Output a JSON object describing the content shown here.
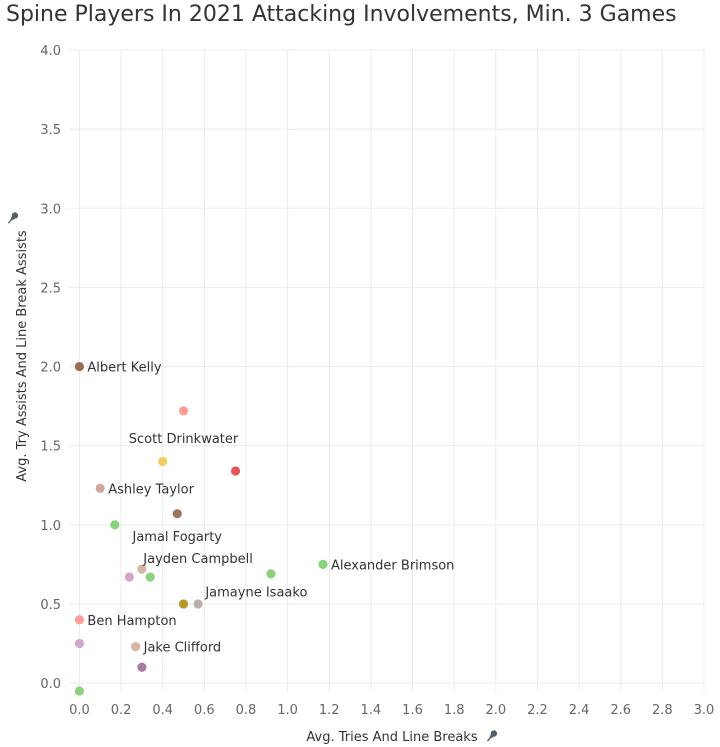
{
  "chart_data": {
    "type": "scatter",
    "title": "Spine Players In 2021 Attacking Involvements, Min. 3 Games",
    "xlabel": "Avg. Tries And Line Breaks",
    "ylabel": "Avg. Try Assists And Line Break Assists",
    "axis_pin_icon": "pin-icon",
    "xlim": [
      -0.05,
      3.0
    ],
    "ylim": [
      -0.05,
      4.0
    ],
    "xticks": [
      0.0,
      0.2,
      0.4,
      0.6,
      0.8,
      1.0,
      1.2,
      1.4,
      1.6,
      1.8,
      2.0,
      2.2,
      2.4,
      2.6,
      2.8,
      3.0
    ],
    "xtick_labels": [
      "0.0",
      "0.2",
      "0.4",
      "0.6",
      "0.8",
      "1.0",
      "1.2",
      "1.4",
      "1.6",
      "1.8",
      "2.0",
      "2.2",
      "2.4",
      "2.6",
      "2.8",
      "3.0"
    ],
    "yticks": [
      0.0,
      0.5,
      1.0,
      1.5,
      2.0,
      2.5,
      3.0,
      3.5,
      4.0
    ],
    "ytick_labels": [
      "0.0",
      "0.5",
      "1.0",
      "1.5",
      "2.0",
      "2.5",
      "3.0",
      "3.5",
      "4.0"
    ],
    "grid": true,
    "points": [
      {
        "x": 0.0,
        "y": 2.0,
        "color": "#9c6b55",
        "label": "Albert Kelly"
      },
      {
        "x": 0.5,
        "y": 1.72,
        "color": "#ff9d9a",
        "label": ""
      },
      {
        "x": 0.4,
        "y": 1.4,
        "color": "#f1ce63",
        "label": ""
      },
      {
        "x": 0.75,
        "y": 1.34,
        "color": "#e15759",
        "label": ""
      },
      {
        "x": 0.1,
        "y": 1.23,
        "color": "#d4a6a0",
        "label": "Ashley Taylor"
      },
      {
        "x": 0.47,
        "y": 1.07,
        "color": "#9d7660",
        "label": ""
      },
      {
        "x": 0.17,
        "y": 1.0,
        "color": "#8cd17d",
        "label": ""
      },
      {
        "x": 0.3,
        "y": 0.72,
        "color": "#d7b5a6",
        "label": ""
      },
      {
        "x": 0.34,
        "y": 0.67,
        "color": "#8cd17d",
        "label": ""
      },
      {
        "x": 0.24,
        "y": 0.67,
        "color": "#d4a6c8",
        "label": ""
      },
      {
        "x": 0.92,
        "y": 0.69,
        "color": "#8cd17d",
        "label": ""
      },
      {
        "x": 1.17,
        "y": 0.75,
        "color": "#8cd17d",
        "label": "Alexander Brimson"
      },
      {
        "x": 0.5,
        "y": 0.5,
        "color": "#b6992d",
        "label": ""
      },
      {
        "x": 0.57,
        "y": 0.5,
        "color": "#bab0ac",
        "label": ""
      },
      {
        "x": 0.0,
        "y": 0.4,
        "color": "#ff9d9a",
        "label": "Ben Hampton"
      },
      {
        "x": 0.0,
        "y": 0.25,
        "color": "#d4a6c8",
        "label": ""
      },
      {
        "x": 0.27,
        "y": 0.23,
        "color": "#d7b5a6",
        "label": "Jake Clifford"
      },
      {
        "x": 0.3,
        "y": 0.1,
        "color": "#a87c9f",
        "label": ""
      },
      {
        "x": 0.0,
        "y": -0.05,
        "color": "#8cd17d",
        "label": ""
      }
    ],
    "floating_labels": [
      {
        "label": "Scott Drinkwater",
        "x": 0.5,
        "y": 1.55
      },
      {
        "label": "Jamal Fogarty",
        "x": 0.47,
        "y": 0.93
      },
      {
        "label": "Jayden Campbell",
        "x": 0.57,
        "y": 0.79
      },
      {
        "label": "Jamayne Isaako",
        "x": 0.85,
        "y": 0.58
      }
    ]
  }
}
